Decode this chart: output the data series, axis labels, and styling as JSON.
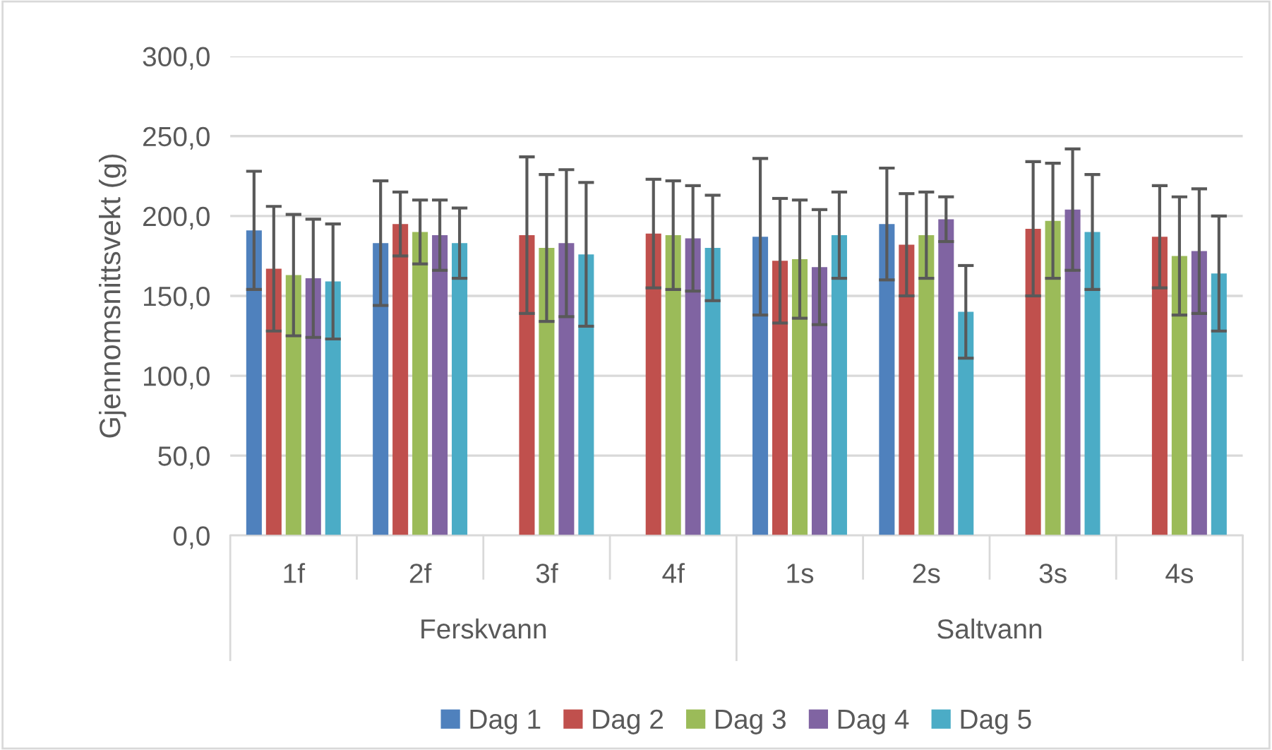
{
  "chart_data": {
    "type": "bar",
    "ylabel": "Gjennomsnittsvekt (g)",
    "categories": [
      "1f",
      "2f",
      "3f",
      "4f",
      "1s",
      "2s",
      "3s",
      "4s"
    ],
    "annotations": [
      "Ferskvann",
      "Saltvann"
    ],
    "ylim": [
      0,
      300
    ],
    "yticks": [
      {
        "value": 0,
        "label": "0,0"
      },
      {
        "value": 50,
        "label": "50,0"
      },
      {
        "value": 100,
        "label": "100,0"
      },
      {
        "value": 150,
        "label": "150,0"
      },
      {
        "value": 200,
        "label": "200,0"
      },
      {
        "value": 250,
        "label": "250,0"
      },
      {
        "value": 300,
        "label": "300,0"
      }
    ],
    "grid": "y",
    "legend": "bottom",
    "series": [
      {
        "name": "Dag 1",
        "color": "#4f81bd",
        "values": [
          191,
          183,
          null,
          null,
          187,
          195,
          null,
          null
        ],
        "errors": [
          37,
          39,
          null,
          null,
          49,
          35,
          null,
          null
        ]
      },
      {
        "name": "Dag 2",
        "color": "#c0504d",
        "values": [
          167,
          195,
          188,
          189,
          172,
          182,
          192,
          187
        ],
        "errors": [
          39,
          20,
          49,
          34,
          39,
          32,
          42,
          32
        ]
      },
      {
        "name": "Dag 3",
        "color": "#9bbb59",
        "values": [
          163,
          190,
          180,
          188,
          173,
          188,
          197,
          175
        ],
        "errors": [
          38,
          20,
          46,
          34,
          37,
          27,
          36,
          37
        ]
      },
      {
        "name": "Dag 4",
        "color": "#8064a2",
        "values": [
          161,
          188,
          183,
          186,
          168,
          198,
          204,
          178
        ],
        "errors": [
          37,
          22,
          46,
          33,
          36,
          14,
          38,
          39
        ]
      },
      {
        "name": "Dag 5",
        "color": "#4bacc6",
        "values": [
          159,
          183,
          176,
          180,
          188,
          140,
          190,
          164
        ],
        "errors": [
          36,
          22,
          45,
          33,
          27,
          29,
          36,
          36
        ]
      }
    ]
  }
}
